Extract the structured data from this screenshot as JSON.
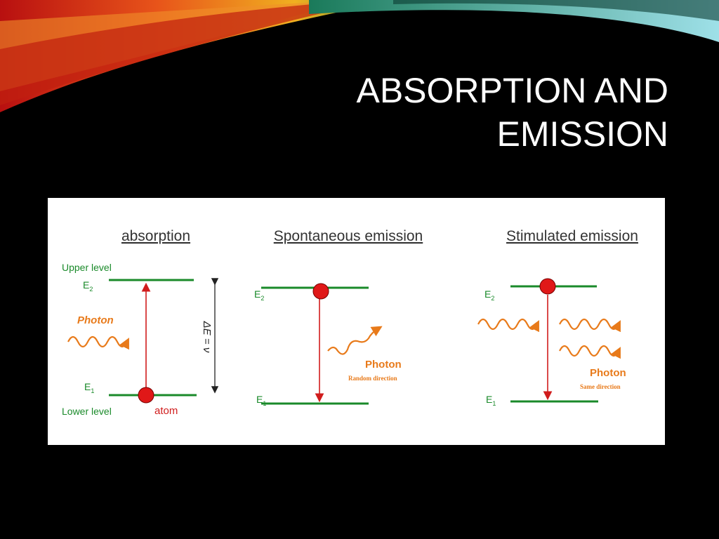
{
  "header": {
    "title_lines": [
      "ABSORPTION AND",
      "EMISSION"
    ]
  },
  "panels": [
    {
      "title": "absorption",
      "upper_label": "Upper level",
      "upper_level": {
        "base": "E",
        "sub": "2"
      },
      "photon": "Photon",
      "lower_level": {
        "base": "E",
        "sub": "1"
      },
      "lower_label": "Lower level",
      "atom": "atom",
      "gap": "ΔE = ν"
    },
    {
      "title": "Spontaneous emission",
      "upper_level": {
        "base": "E",
        "sub": "2"
      },
      "lower_level": {
        "base": "E",
        "sub": "1"
      },
      "photon": "Photon",
      "direction": "Random direction"
    },
    {
      "title": "Stimulated emission",
      "upper_level": {
        "base": "E",
        "sub": "2"
      },
      "lower_level": {
        "base": "E",
        "sub": "1"
      },
      "photon": "Photon",
      "direction": "Same direction"
    }
  ]
}
